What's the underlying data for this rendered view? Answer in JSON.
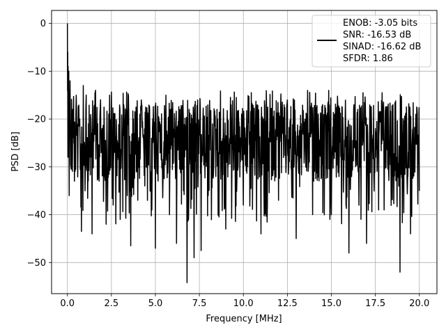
{
  "chart_data": {
    "type": "line",
    "title": "",
    "xlabel": "Frequency [MHz]",
    "ylabel": "PSD [dB]",
    "xlim": [
      -0.9,
      21.0
    ],
    "ylim": [
      -56.5,
      2.7
    ],
    "xticks": [
      0.0,
      2.5,
      5.0,
      7.5,
      10.0,
      12.5,
      15.0,
      17.5,
      20.0
    ],
    "xtick_labels": [
      "0.0",
      "2.5",
      "5.0",
      "7.5",
      "10.0",
      "12.5",
      "15.0",
      "17.5",
      "20.0"
    ],
    "yticks": [
      0,
      -10,
      -20,
      -30,
      -40,
      -50
    ],
    "ytick_labels": [
      "0",
      "−10",
      "−20",
      "−30",
      "−40",
      "−50"
    ],
    "grid": true,
    "legend_position": "top-right",
    "legend_lines": [
      "ENOB: -3.05 bits",
      "SNR: -16.53 dB",
      "SINAD: -16.62 dB",
      "SFDR: 1.86"
    ],
    "line_color": "#000000",
    "description_of_values": "dense noise-like PSD from 0 to 20 MHz, mostly between -14 and -40 dB",
    "series": [
      {
        "x": [
          0.0,
          0.02,
          0.04,
          0.06,
          0.08,
          0.1,
          0.15,
          0.2,
          0.3,
          0.4,
          0.5,
          0.6,
          0.7,
          0.8,
          0.9,
          1.0,
          1.2,
          1.4,
          1.6,
          1.8,
          2.0,
          2.2,
          2.4,
          2.6,
          2.8,
          3.0,
          3.2,
          3.4,
          3.6,
          3.8,
          4.0,
          4.2,
          4.4,
          4.6,
          4.8,
          5.0,
          5.2,
          5.4,
          5.6,
          5.8,
          6.0,
          6.2,
          6.4,
          6.6,
          6.8,
          7.0,
          7.2,
          7.4,
          7.6,
          7.8,
          8.0,
          8.5,
          9.0,
          9.5,
          10.0,
          10.5,
          11.0,
          11.5,
          12.0,
          12.5,
          13.0,
          13.5,
          14.0,
          14.5,
          15.0,
          15.5,
          16.0,
          16.5,
          17.0,
          17.5,
          18.0,
          18.5,
          18.9,
          19.2,
          19.5,
          19.8,
          20.0
        ],
        "y": [
          0.0,
          -6.0,
          -9.0,
          -28.0,
          -10.0,
          -36.0,
          -12.0,
          -30.0,
          -18.0,
          -33.0,
          -15.0,
          -27.0,
          -20.0,
          -43.5,
          -13.0,
          -35.0,
          -21.0,
          -44.0,
          -14.0,
          -33.0,
          -22.0,
          -42.0,
          -15.0,
          -38.0,
          -24.0,
          -41.0,
          -17.0,
          -36.0,
          -46.5,
          -23.0,
          -37.0,
          -16.0,
          -34.0,
          -22.0,
          -39.0,
          -47.0,
          -20.0,
          -31.0,
          -15.0,
          -40.0,
          -22.0,
          -46.0,
          -18.0,
          -35.0,
          -54.2,
          -21.0,
          -49.0,
          -16.0,
          -47.5,
          -25.0,
          -36.0,
          -18.0,
          -43.0,
          -22.0,
          -38.0,
          -17.0,
          -44.0,
          -23.0,
          -37.0,
          -16.0,
          -45.0,
          -20.0,
          -33.0,
          -17.0,
          -40.0,
          -21.0,
          -48.0,
          -18.0,
          -46.0,
          -22.0,
          -39.0,
          -17.0,
          -52.0,
          -24.0,
          -44.0,
          -19.0,
          -35.0
        ]
      }
    ]
  }
}
